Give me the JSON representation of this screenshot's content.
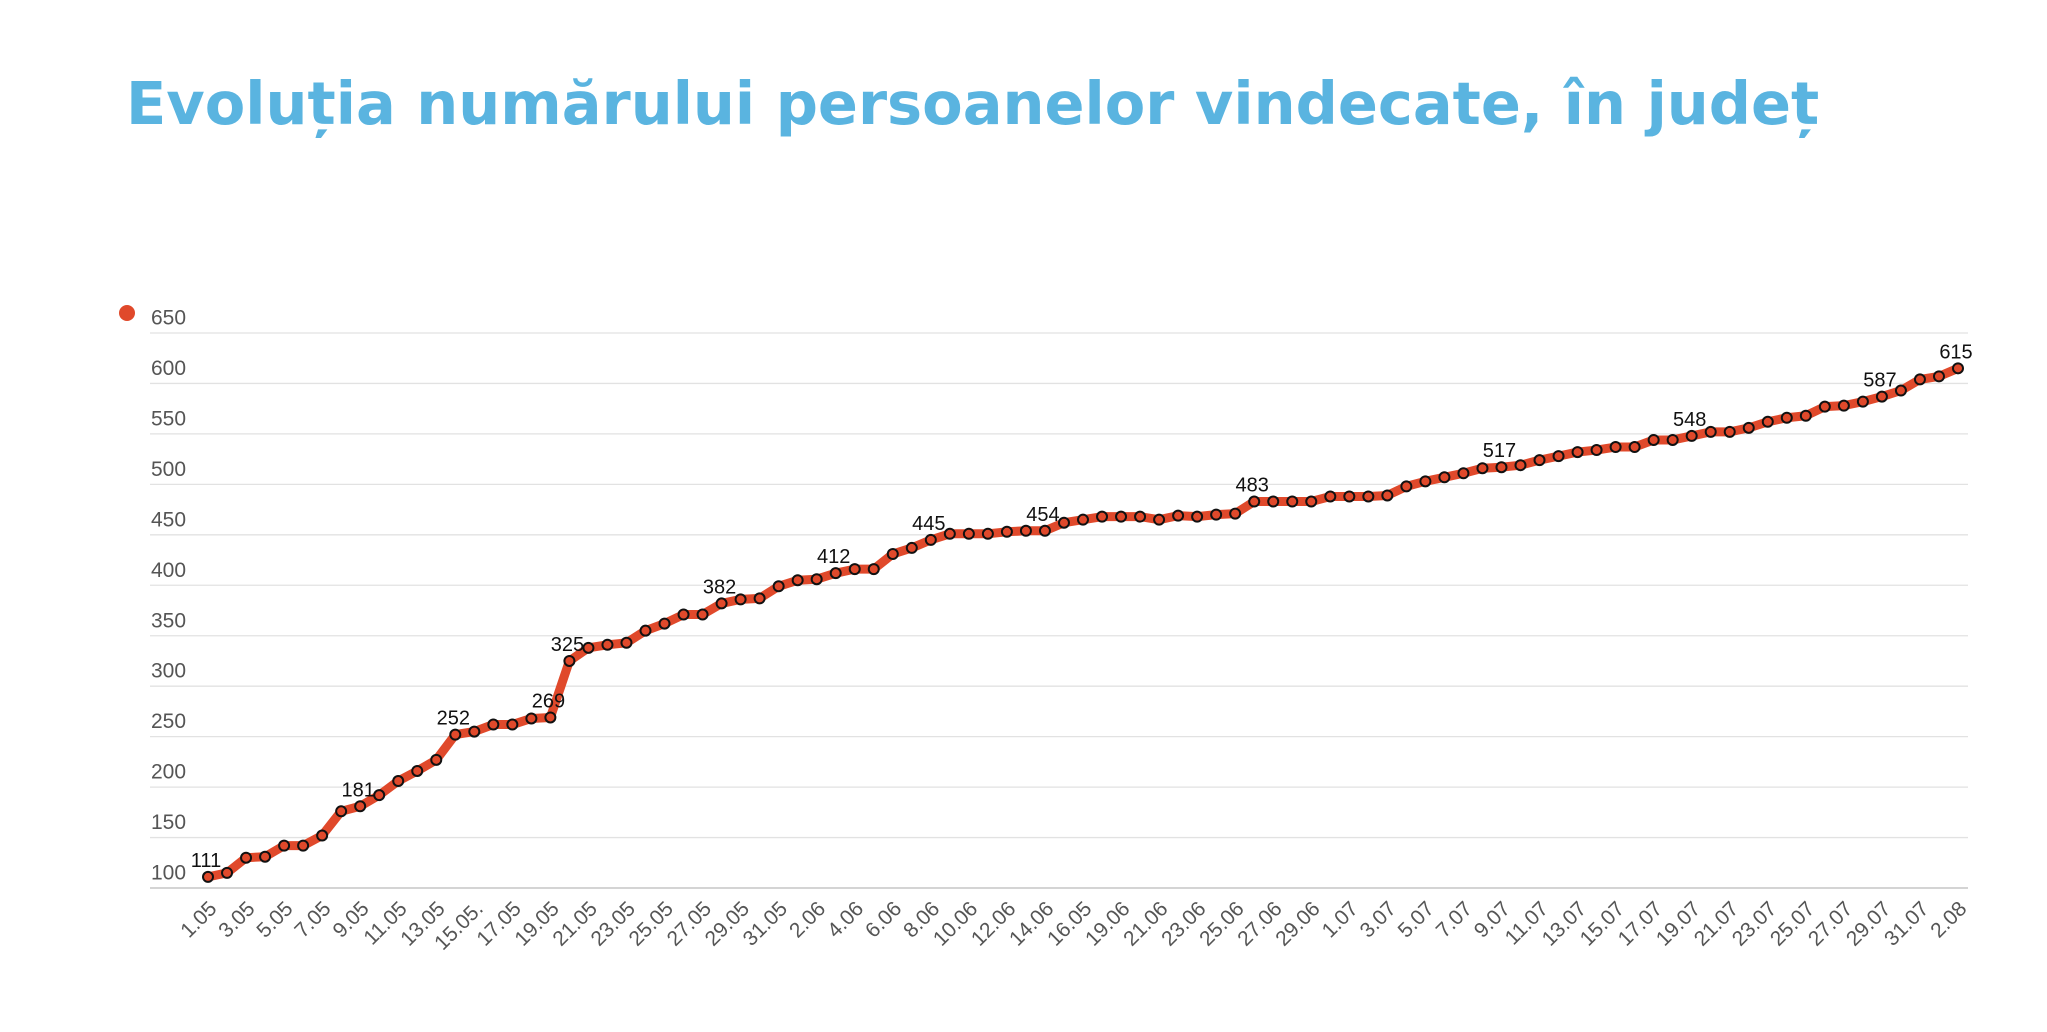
{
  "chart_data": {
    "type": "line",
    "title": "Evoluția numărului persoanelor vindecate, în județ",
    "categories": [
      "1.05",
      null,
      "3.05",
      null,
      "5.05",
      null,
      "7.05",
      null,
      "9.05",
      null,
      "11.05",
      null,
      "13.05",
      null,
      "15.05.",
      null,
      "17.05",
      null,
      "19.05",
      null,
      "21.05",
      null,
      "23.05",
      null,
      "25.05",
      null,
      "27.05",
      null,
      "29.05",
      null,
      "31.05",
      null,
      "2.06",
      null,
      "4.06",
      null,
      "6.06",
      null,
      "8.06",
      null,
      "10.06",
      null,
      "12.06",
      null,
      "14.06",
      null,
      "16.05",
      null,
      "19.06",
      null,
      "21.06",
      null,
      "23.06",
      null,
      "25.06",
      null,
      "27.06",
      null,
      "29.06",
      null,
      "1.07",
      null,
      "3.07",
      null,
      "5.07",
      null,
      "7.07",
      null,
      "9.07",
      null,
      "11.07",
      null,
      "13.07",
      null,
      "15.07",
      null,
      "17.07",
      null,
      "19.07",
      null,
      "21.07",
      null,
      "23.07",
      null,
      "25.07",
      null,
      "27.07",
      null,
      "29.07",
      null,
      "31.07",
      null,
      "2.08"
    ],
    "series": [
      {
        "color": "#e0492b",
        "values": [
          111,
          115,
          130,
          131,
          142,
          142,
          152,
          176,
          181,
          192,
          206,
          216,
          227,
          252,
          255,
          262,
          262,
          268,
          269,
          325,
          338,
          341,
          343,
          355,
          362,
          371,
          371,
          382,
          386,
          387,
          399,
          405,
          406,
          412,
          416,
          416,
          431,
          437,
          445,
          451,
          451,
          451,
          453,
          454,
          454,
          462,
          465,
          468,
          468,
          468,
          465,
          469,
          468,
          470,
          471,
          483,
          483,
          483,
          483,
          488,
          488,
          488,
          489,
          498,
          503,
          507,
          511,
          516,
          517,
          519,
          524,
          528,
          532,
          534,
          537,
          537,
          544,
          544,
          548,
          552,
          552,
          556,
          562,
          566,
          568,
          577,
          578,
          582,
          587,
          593,
          604,
          607,
          615
        ],
        "value_labels": [
          "111",
          null,
          null,
          null,
          null,
          null,
          null,
          null,
          "181",
          null,
          null,
          null,
          null,
          "252",
          null,
          null,
          null,
          null,
          "269",
          "325",
          null,
          null,
          null,
          null,
          null,
          null,
          null,
          "382",
          null,
          null,
          null,
          null,
          null,
          "412",
          null,
          null,
          null,
          null,
          "445",
          null,
          null,
          null,
          null,
          null,
          "454",
          null,
          null,
          null,
          null,
          null,
          null,
          null,
          null,
          null,
          null,
          "483",
          null,
          null,
          null,
          null,
          null,
          null,
          null,
          null,
          null,
          null,
          null,
          null,
          "517",
          null,
          null,
          null,
          null,
          null,
          null,
          null,
          null,
          null,
          "548",
          null,
          null,
          null,
          null,
          null,
          null,
          null,
          null,
          null,
          "587",
          null,
          null,
          null,
          "615"
        ]
      }
    ],
    "ylim": [
      100,
      650
    ],
    "yticks": [
      100,
      150,
      200,
      250,
      300,
      350,
      400,
      450,
      500,
      550,
      600,
      650
    ],
    "grid": true
  }
}
